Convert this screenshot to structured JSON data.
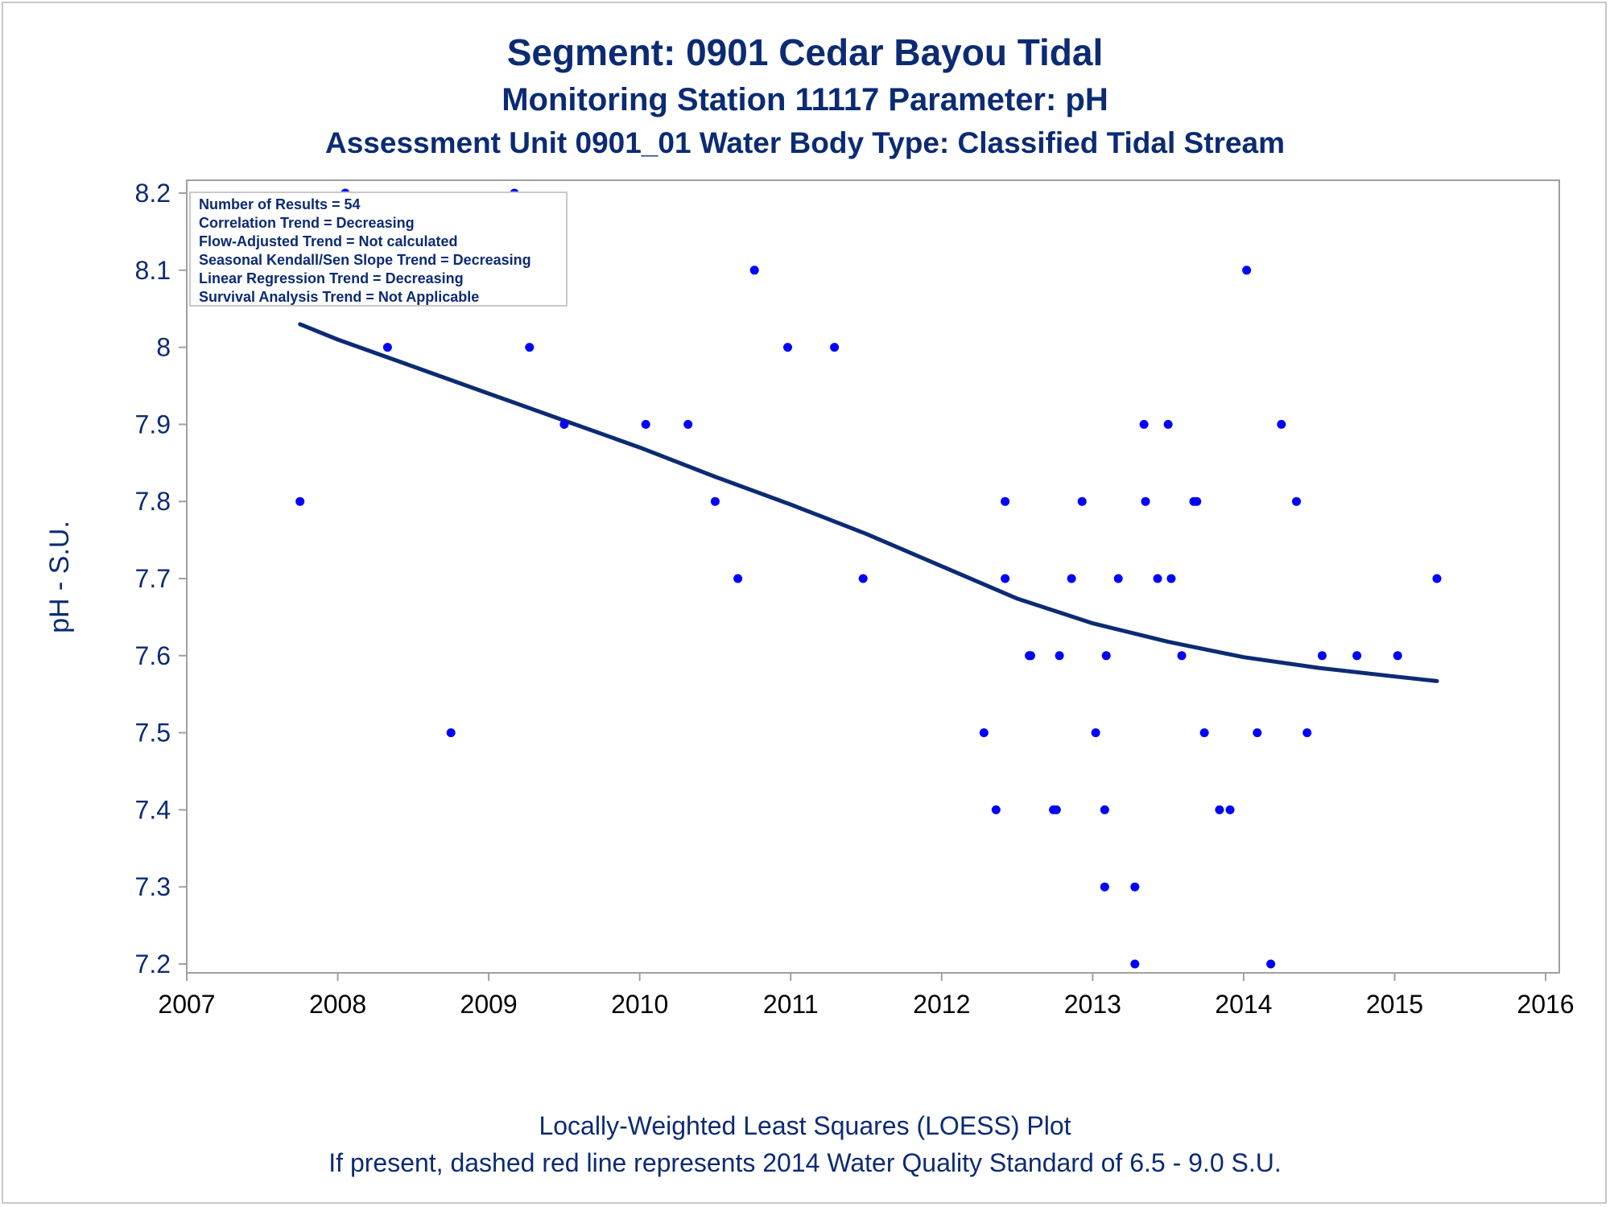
{
  "header": {
    "title": "Segment: 0901  Cedar Bayou Tidal",
    "subtitle1": "Monitoring Station 11117 Parameter: pH",
    "subtitle2": "Assessment Unit 0901_01   Water Body Type: Classified Tidal Stream"
  },
  "footer": {
    "line1": "Locally-Weighted Least Squares (LOESS) Plot",
    "line2": "If present, dashed red line represents 2014 Water Quality Standard of 6.5 - 9.0 S.U."
  },
  "stats_box": [
    "Number of Results = 54",
    "Correlation Trend = Decreasing",
    "Flow-Adjusted Trend = Not calculated",
    "Seasonal Kendall/Sen Slope Trend = Decreasing",
    "Linear Regression Trend = Decreasing",
    "Survival Analysis Trend = Not Applicable"
  ],
  "chart_data": {
    "type": "scatter",
    "ylabel": "pH - S.U.",
    "xlim": [
      2007,
      2016
    ],
    "ylim": [
      7.2,
      8.2
    ],
    "x_ticks": [
      2007,
      2008,
      2009,
      2010,
      2011,
      2012,
      2013,
      2014,
      2015,
      2016
    ],
    "y_ticks": [
      7.2,
      7.3,
      7.4,
      7.5,
      7.6,
      7.7,
      7.8,
      7.9,
      8.0,
      8.1,
      8.2
    ],
    "y_tick_labels": [
      "7.2",
      "7.3",
      "7.4",
      "7.5",
      "7.6",
      "7.7",
      "7.8",
      "7.9",
      "8",
      "8.1",
      "8.2"
    ],
    "grid": false,
    "colors": {
      "points": "#0000ff",
      "trend": "#0b2b73",
      "text": "#0b2b73",
      "axis": "#a0a0a0"
    },
    "points": [
      [
        2007.75,
        7.8
      ],
      [
        2008.05,
        8.2
      ],
      [
        2008.33,
        8.0
      ],
      [
        2008.75,
        7.5
      ],
      [
        2009.17,
        8.2
      ],
      [
        2009.27,
        8.0
      ],
      [
        2009.5,
        7.9
      ],
      [
        2010.04,
        7.9
      ],
      [
        2010.32,
        7.9
      ],
      [
        2010.5,
        7.8
      ],
      [
        2010.65,
        7.7
      ],
      [
        2010.76,
        8.1
      ],
      [
        2010.98,
        8.0
      ],
      [
        2011.29,
        8.0
      ],
      [
        2011.48,
        7.7
      ],
      [
        2012.28,
        7.5
      ],
      [
        2012.36,
        7.4
      ],
      [
        2012.42,
        7.8
      ],
      [
        2012.42,
        7.7
      ],
      [
        2012.58,
        7.6
      ],
      [
        2012.59,
        7.6
      ],
      [
        2012.74,
        7.4
      ],
      [
        2012.76,
        7.4
      ],
      [
        2012.78,
        7.6
      ],
      [
        2012.86,
        7.7
      ],
      [
        2012.93,
        7.8
      ],
      [
        2013.02,
        7.5
      ],
      [
        2013.08,
        7.3
      ],
      [
        2013.08,
        7.4
      ],
      [
        2013.09,
        7.6
      ],
      [
        2013.17,
        7.7
      ],
      [
        2013.28,
        7.3
      ],
      [
        2013.28,
        7.2
      ],
      [
        2013.34,
        7.9
      ],
      [
        2013.35,
        7.8
      ],
      [
        2013.43,
        7.7
      ],
      [
        2013.5,
        7.9
      ],
      [
        2013.52,
        7.7
      ],
      [
        2013.59,
        7.6
      ],
      [
        2013.67,
        7.8
      ],
      [
        2013.69,
        7.8
      ],
      [
        2013.74,
        7.5
      ],
      [
        2013.84,
        7.4
      ],
      [
        2013.91,
        7.4
      ],
      [
        2014.02,
        8.1
      ],
      [
        2014.09,
        7.5
      ],
      [
        2014.18,
        7.2
      ],
      [
        2014.25,
        7.9
      ],
      [
        2014.35,
        7.8
      ],
      [
        2014.42,
        7.5
      ],
      [
        2014.52,
        7.6
      ],
      [
        2014.75,
        7.6
      ],
      [
        2015.02,
        7.6
      ],
      [
        2015.28,
        7.7
      ]
    ],
    "trend_line": [
      [
        2007.75,
        8.03
      ],
      [
        2008.0,
        8.01
      ],
      [
        2008.5,
        7.975
      ],
      [
        2009.0,
        7.94
      ],
      [
        2009.5,
        7.905
      ],
      [
        2010.0,
        7.87
      ],
      [
        2010.5,
        7.832
      ],
      [
        2011.0,
        7.796
      ],
      [
        2011.5,
        7.758
      ],
      [
        2012.0,
        7.716
      ],
      [
        2012.5,
        7.674
      ],
      [
        2013.0,
        7.642
      ],
      [
        2013.5,
        7.618
      ],
      [
        2014.0,
        7.598
      ],
      [
        2014.5,
        7.584
      ],
      [
        2015.0,
        7.573
      ],
      [
        2015.28,
        7.567
      ]
    ]
  }
}
